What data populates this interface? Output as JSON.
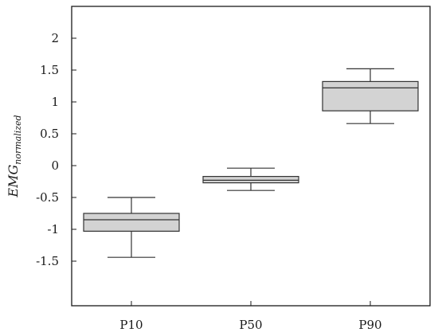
{
  "chart_data": {
    "type": "boxplot",
    "title": "",
    "xlabel": "",
    "ylabel": {
      "main": "EMG",
      "subscript": "normalized"
    },
    "ylim": [
      -2.2,
      2.5
    ],
    "yticks": [
      2,
      1.5,
      1,
      0.5,
      0,
      -0.5,
      -1,
      -1.5
    ],
    "ytick_labels": [
      "2",
      "1.5",
      "1",
      "0.5",
      "0",
      "-0.5",
      "-1",
      "-1.5"
    ],
    "categories": [
      "P10",
      "P50",
      "P90"
    ],
    "boxes": [
      {
        "category": "P10",
        "whisker_low": -1.44,
        "q1": -1.03,
        "median": -0.85,
        "q3": -0.75,
        "whisker_high": -0.5
      },
      {
        "category": "P50",
        "whisker_low": -0.39,
        "q1": -0.27,
        "median": -0.23,
        "q3": -0.17,
        "whisker_high": -0.04
      },
      {
        "category": "P90",
        "whisker_low": 0.66,
        "q1": 0.86,
        "median": 1.22,
        "q3": 1.32,
        "whisker_high": 1.52
      }
    ],
    "box_fill": "#d3d3d3",
    "line_color": "#333333",
    "grid": false,
    "legend": false
  }
}
